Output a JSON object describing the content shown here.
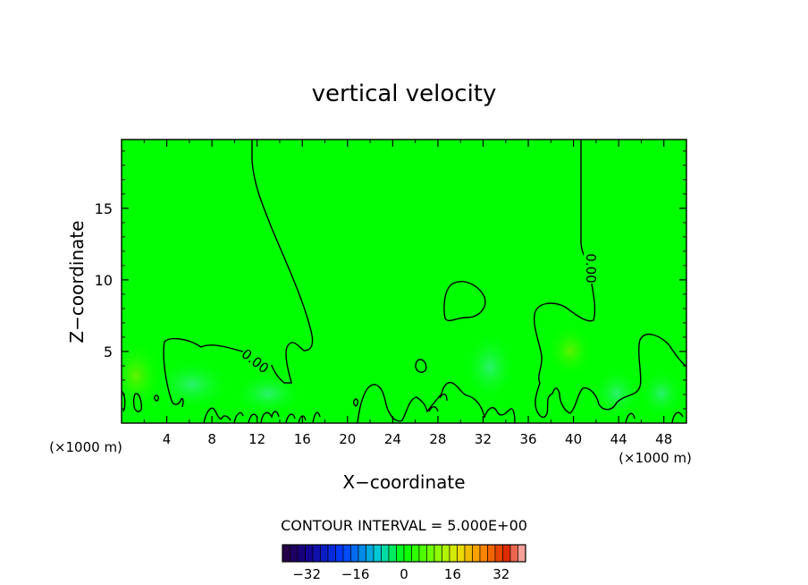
{
  "chart_data": {
    "type": "heatmap",
    "title": "vertical velocity",
    "xlabel": "X−coordinate",
    "ylabel": "Z−coordinate",
    "x_unit_left": "(×1000 m)",
    "x_unit_right": "(×1000 m)",
    "xlim": [
      0,
      50
    ],
    "ylim": [
      0,
      19.8
    ],
    "x_ticks": [
      4,
      8,
      12,
      16,
      20,
      24,
      28,
      32,
      36,
      40,
      44,
      48
    ],
    "y_ticks": [
      5,
      10,
      15
    ],
    "contour_label": "0.00",
    "contour_interval_text": "CONTOUR INTERVAL = 5.000E+00",
    "colorbar": {
      "min": -40,
      "max": 40,
      "step": 2.5,
      "ticks": [
        -32,
        -16,
        0,
        16,
        32
      ],
      "tick_labels": [
        "−32",
        "−16",
        "0",
        "16",
        "32"
      ]
    },
    "background_color": "#00ff00"
  }
}
